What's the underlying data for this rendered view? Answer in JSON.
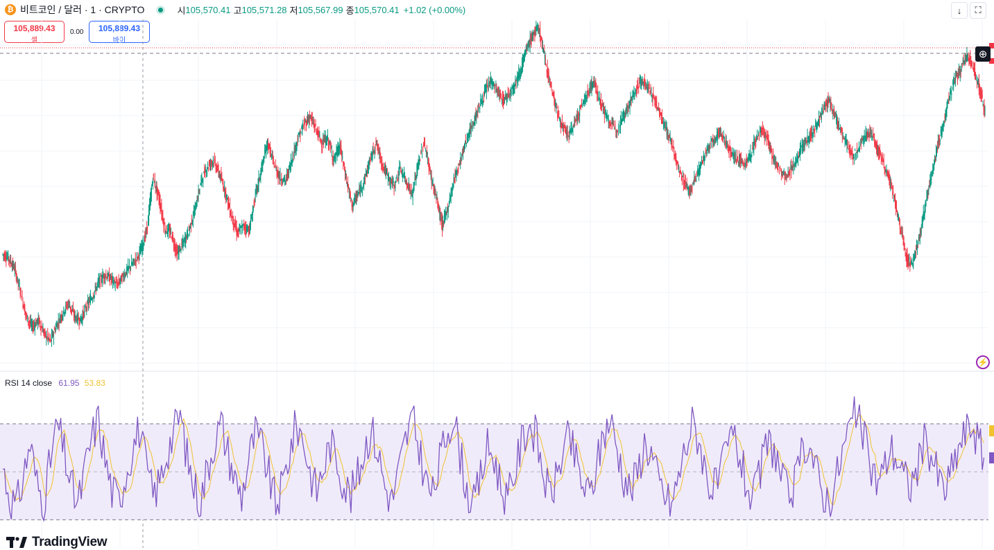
{
  "header": {
    "coin_icon": "bitcoin-icon",
    "title": "비트코인 / 달러 · 1 · CRYPTO",
    "ohlc": [
      {
        "label": "시",
        "value": "105,570.41"
      },
      {
        "label": "고",
        "value": "105,571.28"
      },
      {
        "label": "저",
        "value": "105,567.99"
      },
      {
        "label": "종",
        "value": "105,570.41"
      }
    ],
    "change": "+1.02 (+0.00%)"
  },
  "trade": {
    "sell_price": "105,889.43",
    "sell_label": "셀",
    "spread": "0.00",
    "buy_price": "105,889.43",
    "buy_label": "바이"
  },
  "toolbar": {
    "download_icon": "arrow-down-icon",
    "fullscreen_icon": "fullscreen-icon"
  },
  "indicator": {
    "name": "RSI 14 close",
    "rsi_value": "61.95",
    "ma_value": "53.83"
  },
  "branding": {
    "logo_text": "TradingView"
  },
  "colors": {
    "up": "#089981",
    "down": "#f23645",
    "rsi": "#7e57c2",
    "rsi_ma": "#f0c230",
    "rsi_band": "#f0ebfa"
  },
  "chart_data": {
    "type": "line",
    "series": [
      {
        "values": [
          96,
          94,
          88,
          75,
          60,
          54,
          58,
          50,
          46,
          55,
          62,
          68,
          60,
          58,
          66,
          72,
          80,
          84,
          82,
          78,
          83,
          88,
          92,
          98,
          110,
          140,
          128,
          110,
          108,
          96,
          102,
          110,
          122,
          138,
          146,
          150,
          142,
          132,
          118,
          108,
          112,
          110,
          130,
          145,
          160,
          148,
          140,
          138,
          150,
          162,
          170,
          175,
          168,
          160,
          162,
          150,
          158,
          140,
          124,
          130,
          138,
          150,
          160,
          148,
          140,
          135,
          145,
          138,
          130,
          148,
          160,
          142,
          128,
          112,
          124,
          140,
          150,
          162,
          170,
          180,
          188,
          196,
          190,
          184,
          188,
          194,
          202,
          214,
          222,
          226,
          208,
          192,
          178,
          168,
          164,
          172,
          180,
          188,
          195,
          186,
          176,
          170,
          168,
          176,
          182,
          190,
          196,
          192,
          186,
          178,
          168,
          160,
          146,
          138,
          132,
          140,
          148,
          156,
          162,
          166,
          160,
          154,
          150,
          148,
          152,
          162,
          168,
          160,
          150,
          144,
          140,
          146,
          152,
          160,
          164,
          170,
          178,
          184,
          176,
          168,
          160,
          152,
          156,
          164,
          166,
          158,
          150,
          140,
          126,
          110,
          94,
          90,
          104,
          122,
          140,
          156,
          170,
          186,
          196,
          202,
          210,
          204,
          192,
          178
        ]
      },
      {
        "name": "RSI 14 close",
        "values": [
          52,
          40,
          35,
          48,
          62,
          45,
          38,
          55,
          70,
          58,
          44,
          36,
          50,
          64,
          72,
          55,
          42,
          38,
          49,
          60,
          68,
          52,
          40,
          46,
          58,
          66,
          74,
          56,
          44,
          38,
          52,
          63,
          70,
          58,
          47,
          40,
          55,
          66,
          60,
          48,
          36,
          44,
          58,
          70,
          64,
          50,
          42,
          52,
          62,
          55,
          45,
          40,
          48,
          60,
          68,
          58,
          44,
          38,
          50,
          63,
          72,
          60,
          46,
          40,
          54,
          66,
          74,
          58,
          42,
          36,
          48,
          60,
          56,
          44,
          38,
          50,
          62,
          70,
          66,
          52,
          40,
          46,
          58,
          64,
          54,
          44,
          40,
          52,
          66,
          72,
          60,
          48,
          42,
          50,
          62,
          58,
          46,
          40,
          36,
          48,
          60,
          70,
          64,
          50,
          42,
          46,
          58,
          66,
          56,
          44,
          38,
          50,
          62,
          60,
          48,
          40,
          44,
          56,
          64,
          52,
          42,
          38,
          46,
          58,
          68,
          74,
          66,
          54,
          46,
          50,
          60,
          56,
          48,
          44,
          52,
          62,
          58,
          48,
          42,
          50,
          60,
          66,
          70,
          62,
          54
        ]
      }
    ]
  }
}
